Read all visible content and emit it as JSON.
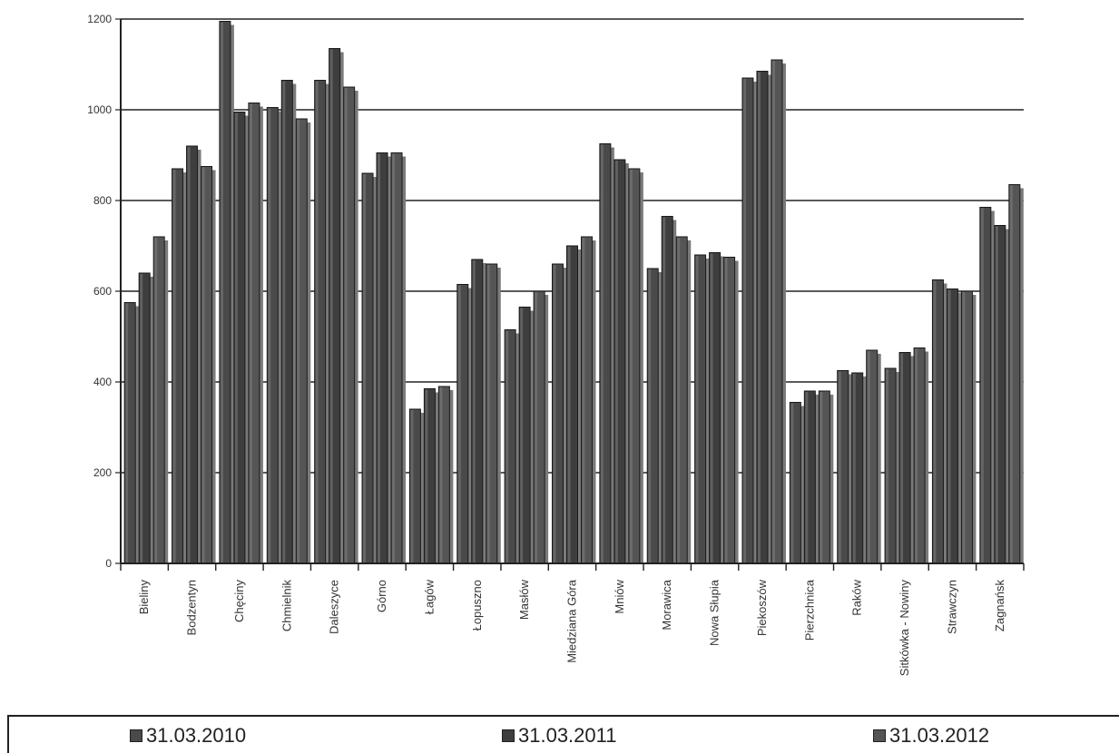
{
  "chart_data": {
    "type": "bar",
    "categories": [
      "Bieliny",
      "Bodzentyn",
      "Chęciny",
      "Chmielnik",
      "Daleszyce",
      "Górno",
      "Łagów",
      "Łopuszno",
      "Masłów",
      "Miedziana Góra",
      "Mniów",
      "Morawica",
      "Nowa Słupia",
      "Piekoszów",
      "Pierzchnica",
      "Raków",
      "Sitkówka - Nowiny",
      "Strawczyn",
      "Zagnańsk"
    ],
    "series": [
      {
        "name": "31.03.2010",
        "color": "#4a4a4a",
        "values": [
          575,
          870,
          1195,
          1005,
          1065,
          860,
          340,
          615,
          515,
          660,
          925,
          650,
          680,
          1070,
          355,
          425,
          430,
          625,
          785
        ]
      },
      {
        "name": "31.03.2011",
        "color": "#3e3e3e",
        "values": [
          640,
          920,
          995,
          1065,
          1135,
          905,
          385,
          670,
          565,
          700,
          890,
          765,
          685,
          1085,
          380,
          420,
          465,
          605,
          745
        ]
      },
      {
        "name": "31.03.2012",
        "color": "#555555",
        "values": [
          720,
          875,
          1015,
          980,
          1050,
          905,
          390,
          660,
          600,
          720,
          870,
          720,
          675,
          1110,
          380,
          470,
          475,
          600,
          835
        ]
      }
    ],
    "ylim": [
      0,
      1200
    ],
    "yticks": [
      "0",
      "200",
      "400",
      "600",
      "800",
      "1000",
      "1200"
    ],
    "grid": true,
    "legend_position": "bottom"
  }
}
